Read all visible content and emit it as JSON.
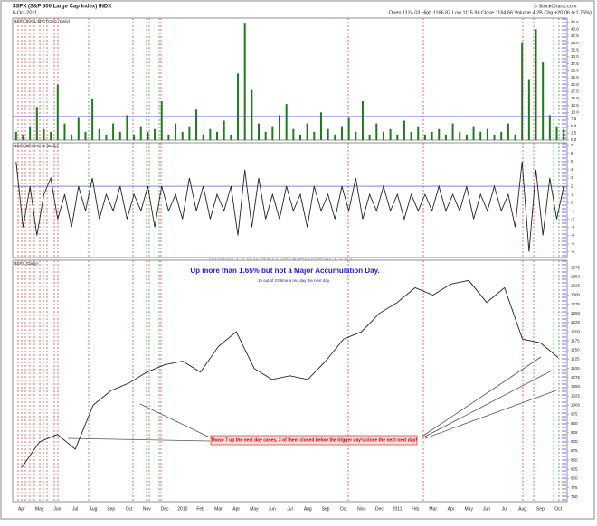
{
  "header": {
    "symbol": "$SPX (S&P 500 Large Cap Index) INDX",
    "date": "6-Oct-2011",
    "quote": "Open 1124.03  High 1166.87  Low 1115.98  Close 1164.66  Volume 4.2B  Chg +20.06 (+1.75%)",
    "credit": "© StockCharts.com",
    "watermark": "www.cobrasmarketview.com"
  },
  "chart_data": [
    {
      "type": "bar",
      "label": "$SPX:$VOL:$PCTCHG (Daily)",
      "color": "#1f7a1f",
      "threshold": 8.5,
      "ylim": [
        0,
        44
      ],
      "yticks": [
        42.5,
        {
          "value": 40,
          "label": "40.0"
        },
        37.5,
        {
          "value": 35,
          "label": "35.0"
        },
        32.5,
        {
          "value": 30,
          "label": "30.0"
        },
        27.5,
        {
          "value": 25,
          "label": "25.0"
        },
        22.5,
        {
          "value": 20,
          "label": "20.0"
        },
        17.5,
        {
          "value": 15,
          "label": "15.0"
        },
        12.5,
        {
          "value": 10,
          "label": "10.0"
        },
        7.5,
        {
          "value": 5,
          "label": "5.0"
        },
        2.5,
        {
          "value": 0,
          "label": "0.0"
        }
      ],
      "values": [
        3,
        2,
        5,
        12,
        4,
        3,
        20,
        6,
        2,
        8,
        3,
        15,
        4,
        2,
        6,
        3,
        9,
        2,
        5,
        3,
        4,
        14,
        2,
        6,
        3,
        5,
        11,
        2,
        4,
        3,
        7,
        2,
        24,
        42,
        18,
        6,
        3,
        5,
        9,
        13,
        4,
        2,
        6,
        3,
        10,
        4,
        2,
        5,
        8,
        3,
        14,
        2,
        6,
        3,
        4,
        2,
        7,
        3,
        5,
        2,
        3,
        4,
        2,
        6,
        3,
        2,
        5,
        3,
        4,
        2,
        3,
        6,
        2,
        35,
        22,
        40,
        28,
        9,
        5,
        4
      ]
    },
    {
      "type": "line",
      "label": "$SPX:$PCTCHG (Daily)",
      "color": "#222222",
      "threshold": 2,
      "ylim": [
        -6.7,
        7.3
      ],
      "yticks": [
        7,
        6,
        5,
        4,
        3,
        2,
        1,
        0,
        -1,
        -2,
        -3,
        -4,
        -5,
        -6
      ],
      "values": [
        5,
        -3,
        2,
        -4,
        1,
        3,
        -2,
        1,
        -3,
        2,
        -1,
        3,
        -2,
        1,
        -1,
        2,
        -2,
        1,
        -1,
        2,
        -3,
        2,
        -1,
        1,
        -2,
        3,
        -1,
        2,
        -2,
        1,
        -1,
        2,
        -4,
        4,
        -3,
        3,
        -2,
        1,
        -2,
        2,
        -1,
        1,
        -3,
        2,
        -1,
        1,
        -2,
        2,
        -1,
        3,
        -2,
        1,
        -1,
        2,
        -1,
        1,
        -2,
        1,
        -1,
        1,
        -1,
        2,
        -1,
        1,
        -1,
        2,
        -2,
        1,
        -1,
        2,
        -1,
        1,
        -3,
        5,
        -6,
        4,
        -4,
        3,
        -2,
        2
      ]
    },
    {
      "type": "line",
      "label": "$SPX (Daily)",
      "color": "#222222",
      "ylim": [
        737,
        1395
      ],
      "yticks": [
        1375,
        1350,
        1325,
        1300,
        1275,
        1250,
        1225,
        1200,
        1175,
        1150,
        1125,
        1100,
        1075,
        1050,
        1025,
        1000,
        975,
        950,
        925,
        900,
        875,
        850,
        825,
        800,
        775,
        750
      ],
      "categories": [
        "Apr",
        "May",
        "Jun",
        "Jul",
        "Aug",
        "Sep",
        "Oct",
        "Nov",
        "Dec",
        "2010",
        "Feb",
        "Mar",
        "Apr",
        "May",
        "Jun",
        "Jul",
        "Aug",
        "Sep",
        "Oct",
        "Nov",
        "Dec",
        "2011",
        "Feb",
        "Mar",
        "Apr",
        "May",
        "Jun",
        "Jul",
        "Aug",
        "Sep",
        "Oct"
      ],
      "values": [
        830,
        900,
        920,
        880,
        1000,
        1040,
        1060,
        1090,
        1110,
        1120,
        1090,
        1160,
        1200,
        1100,
        1070,
        1080,
        1070,
        1120,
        1180,
        1200,
        1250,
        1280,
        1320,
        1300,
        1330,
        1340,
        1280,
        1320,
        1180,
        1170,
        1130
      ],
      "annotations": {
        "headline": "Up more than 1.65% but not a Major Accumulation Day.",
        "subline": "15 out of 23 time a red day the next day.",
        "note": "Those 7 up the next day cases, 3 of them closed below the trigger day's close the next next day!"
      }
    }
  ]
}
